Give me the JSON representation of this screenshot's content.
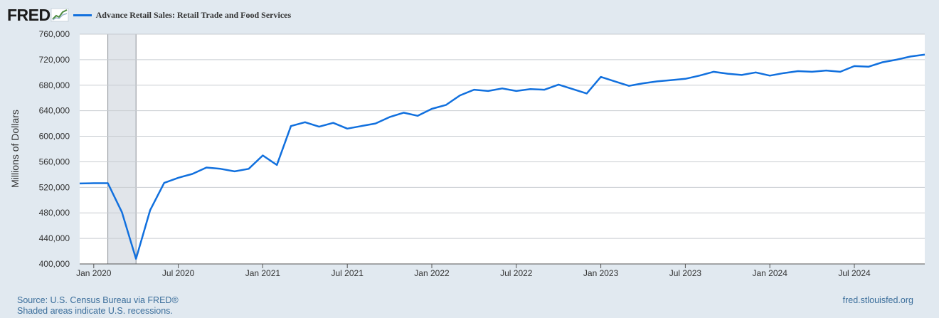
{
  "header": {
    "logo_text": "FRED",
    "legend_label": "Advance Retail Sales: Retail Trade and Food Services",
    "line_color": "#1170de"
  },
  "footer": {
    "source": "Source: U.S. Census Bureau via FRED®",
    "note": "Shaded areas indicate U.S. recessions.",
    "url": "fred.stlouisfed.org"
  },
  "chart_data": {
    "type": "line",
    "ylabel": "Millions of Dollars",
    "xlabel": "",
    "ylim": [
      400000,
      760000
    ],
    "y_ticks": [
      400000,
      440000,
      480000,
      520000,
      560000,
      600000,
      640000,
      680000,
      720000,
      760000
    ],
    "y_tick_labels": [
      "400,000",
      "440,000",
      "480,000",
      "520,000",
      "560,000",
      "600,000",
      "640,000",
      "680,000",
      "720,000",
      "760,000"
    ],
    "x_range": [
      "2019-12",
      "2024-12"
    ],
    "x_ticks": [
      "2020-01",
      "2020-07",
      "2021-01",
      "2021-07",
      "2022-01",
      "2022-07",
      "2023-01",
      "2023-07",
      "2024-01",
      "2024-07"
    ],
    "x_tick_labels": [
      "Jan 2020",
      "Jul 2020",
      "Jan 2021",
      "Jul 2021",
      "Jan 2022",
      "Jul 2022",
      "Jan 2023",
      "Jul 2023",
      "Jan 2024",
      "Jul 2024"
    ],
    "recessions": [
      {
        "start": "2020-02",
        "end": "2020-04"
      }
    ],
    "grid": true,
    "legend": "top-left",
    "series": [
      {
        "name": "Advance Retail Sales: Retail Trade and Food Services",
        "color": "#1170de",
        "x": [
          "2019-12",
          "2020-01",
          "2020-02",
          "2020-03",
          "2020-04",
          "2020-05",
          "2020-06",
          "2020-07",
          "2020-08",
          "2020-09",
          "2020-10",
          "2020-11",
          "2020-12",
          "2021-01",
          "2021-02",
          "2021-03",
          "2021-04",
          "2021-05",
          "2021-06",
          "2021-07",
          "2021-08",
          "2021-09",
          "2021-10",
          "2021-11",
          "2021-12",
          "2022-01",
          "2022-02",
          "2022-03",
          "2022-04",
          "2022-05",
          "2022-06",
          "2022-07",
          "2022-08",
          "2022-09",
          "2022-10",
          "2022-11",
          "2022-12",
          "2023-01",
          "2023-02",
          "2023-03",
          "2023-04",
          "2023-05",
          "2023-06",
          "2023-07",
          "2023-08",
          "2023-09",
          "2023-10",
          "2023-11",
          "2023-12",
          "2024-01",
          "2024-02",
          "2024-03",
          "2024-04",
          "2024-05",
          "2024-06",
          "2024-07",
          "2024-08",
          "2024-09",
          "2024-10",
          "2024-11",
          "2024-12"
        ],
        "values": [
          526000,
          526500,
          526500,
          481000,
          408000,
          484000,
          527000,
          535000,
          541000,
          551000,
          549000,
          545000,
          549000,
          570000,
          555000,
          616000,
          622000,
          615000,
          621000,
          612000,
          616000,
          620000,
          630000,
          637000,
          632000,
          643000,
          649000,
          664000,
          673000,
          671000,
          675000,
          671000,
          674000,
          673000,
          681000,
          674000,
          667000,
          693000,
          686000,
          679000,
          683000,
          686000,
          688000,
          690000,
          695000,
          701000,
          698000,
          696000,
          700000,
          695000,
          699000,
          702000,
          701000,
          703000,
          701000,
          710000,
          709000,
          716000,
          720000,
          725000,
          728000
        ]
      }
    ]
  }
}
